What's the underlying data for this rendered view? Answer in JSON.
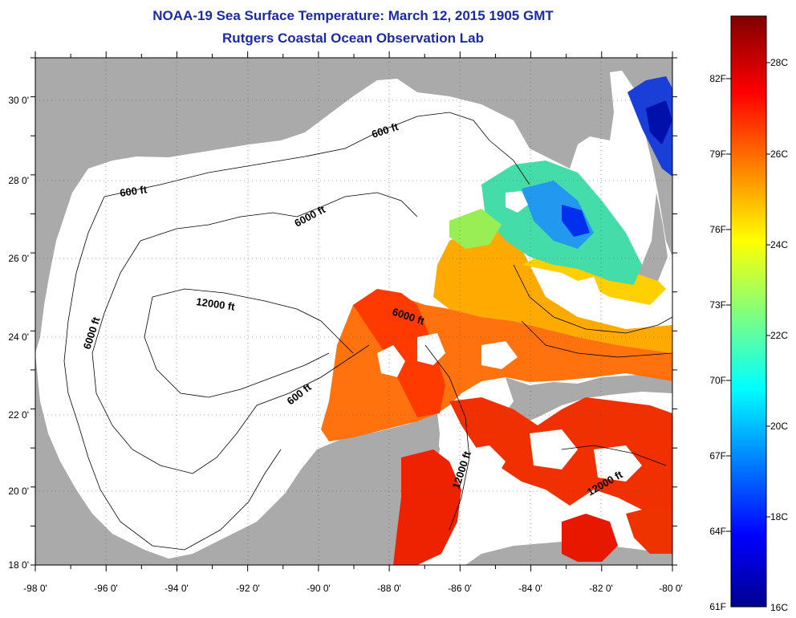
{
  "title": "NOAA-19 Sea Surface Temperature:  March 12, 2015 1905 GMT",
  "subtitle": "Rutgers Coastal Ocean Observation Lab",
  "x_ticks": [
    "-98 0'",
    "-96 0'",
    "-94 0'",
    "-92 0'",
    "-90 0'",
    "-88 0'",
    "-86 0'",
    "-84 0'",
    "-82 0'",
    "-80 0'"
  ],
  "y_ticks": [
    "30 0'",
    "28 0'",
    "26 0'",
    "24 0'",
    "22 0'",
    "20 0'",
    "18 0'"
  ],
  "contours": {
    "c600_north": "600 ft",
    "c600_west": "600 ft",
    "c600_south": "600 ft",
    "c6000_north": "6000 ft",
    "c6000_west": "6000 ft",
    "c6000_east": "6000 ft",
    "c12000_center": "12000 ft",
    "c12000_yucatan": "12000 ft",
    "c12000_caribbean": "12000 ft"
  },
  "colorbar": {
    "fahrenheit": [
      "82F",
      "79F",
      "76F",
      "73F",
      "70F",
      "67F",
      "64F",
      "61F"
    ],
    "celsius": [
      "28C",
      "26C",
      "24C",
      "22C",
      "20C",
      "18C",
      "16C"
    ],
    "min_c": 16,
    "max_c": 29,
    "colormap": [
      "#00008f",
      "#0000ff",
      "#00ffff",
      "#ffff00",
      "#ff0000",
      "#800000"
    ]
  },
  "colors": {
    "land": "#aaaaaa",
    "water_nodata": "#ffffff",
    "title": "#1a2aa8"
  }
}
